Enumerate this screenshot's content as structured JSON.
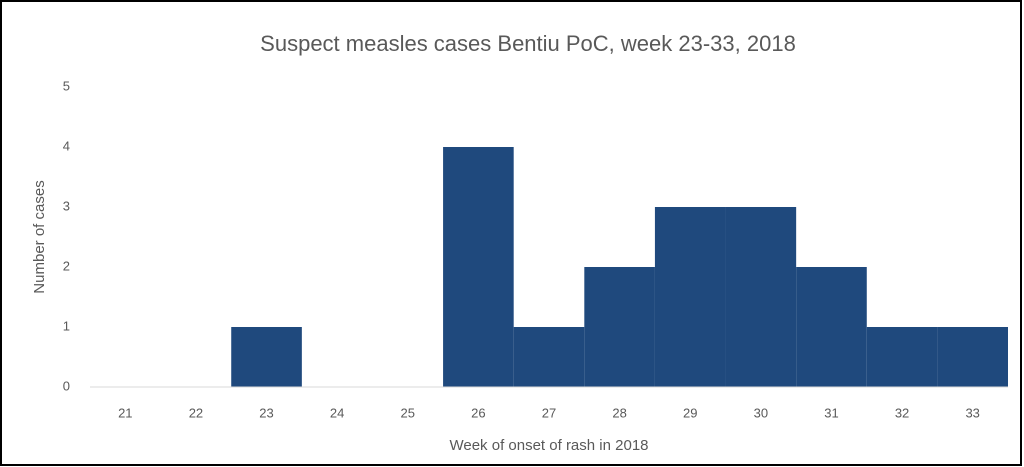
{
  "chart_data": {
    "type": "bar",
    "title": "Suspect measles cases Bentiu PoC, week 23-33, 2018",
    "x_label": "Week of onset of rash in 2018",
    "y_label": "Number of cases",
    "categories": [
      "21",
      "22",
      "23",
      "24",
      "25",
      "26",
      "27",
      "28",
      "29",
      "30",
      "31",
      "32",
      "33"
    ],
    "values": [
      0,
      0,
      1,
      0,
      0,
      4,
      1,
      2,
      3,
      3,
      2,
      1,
      1
    ],
    "color": "#1f497d",
    "ylim": [
      0,
      5
    ],
    "yticks": [
      0,
      1,
      2,
      3,
      4,
      5
    ],
    "grid": false
  }
}
